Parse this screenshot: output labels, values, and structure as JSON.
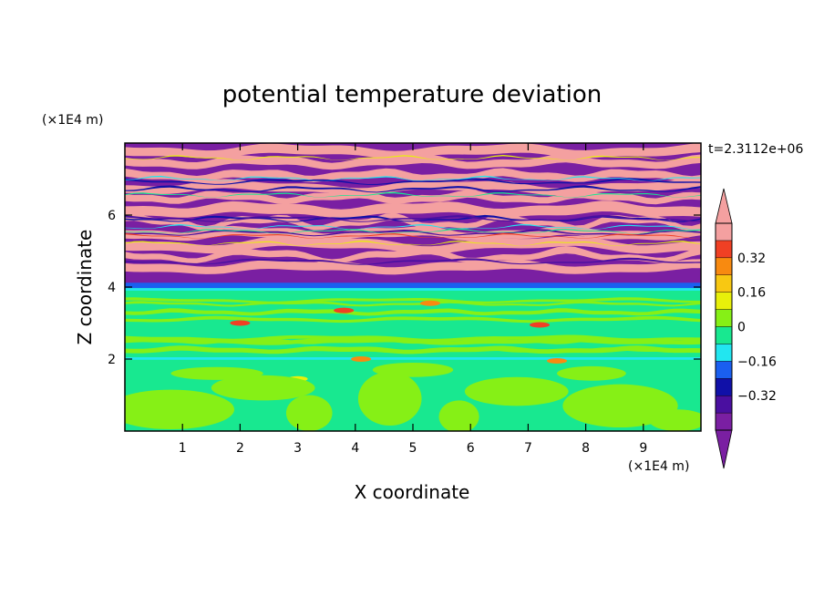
{
  "chart_data": {
    "type": "heatmap",
    "title": "potential temperature deviation",
    "xlabel": "X coordinate",
    "ylabel": "Z coordinate",
    "x_unit": "(×1E4 m)",
    "y_unit": "(×1E4 m)",
    "time_label": "t=2.3112e+06",
    "xlim": [
      0,
      10
    ],
    "ylim": [
      0,
      8
    ],
    "x_ticks": [
      "1",
      "2",
      "3",
      "4",
      "5",
      "6",
      "7",
      "8",
      "9"
    ],
    "y_ticks": [
      "2",
      "4",
      "6"
    ],
    "colorbar": {
      "levels": [
        -0.48,
        -0.4,
        -0.32,
        -0.24,
        -0.16,
        -0.08,
        0,
        0.08,
        0.16,
        0.24,
        0.32,
        0.4,
        0.48
      ],
      "labels": [
        "0.32",
        "0.16",
        "0",
        "−0.16",
        "−0.32"
      ],
      "label_values": [
        0.32,
        0.16,
        0,
        -0.16,
        -0.32
      ],
      "colors": [
        "#7a1fa2",
        "#4a0fa0",
        "#1010a8",
        "#1a5ff0",
        "#22e6f0",
        "#18e890",
        "#86f016",
        "#e8f00a",
        "#f8c812",
        "#f88a10",
        "#f04024",
        "#f4a0a0"
      ],
      "over_color": "#f4a0a0",
      "under_color": "#7a1fa2"
    },
    "layers": [
      {
        "z_range": [
          0,
          2.0
        ],
        "description": "green and lime patches",
        "colors": [
          "#18e890",
          "#86f016"
        ]
      },
      {
        "z_range": [
          2.0,
          4.0
        ],
        "description": "mostly green with lime bands",
        "colors": [
          "#18e890",
          "#86f016"
        ]
      },
      {
        "z_range": [
          4.0,
          8.0
        ],
        "description": "alternating purple and pink stripes",
        "colors": [
          "#7a1fa2",
          "#f4a0a0"
        ]
      }
    ]
  }
}
